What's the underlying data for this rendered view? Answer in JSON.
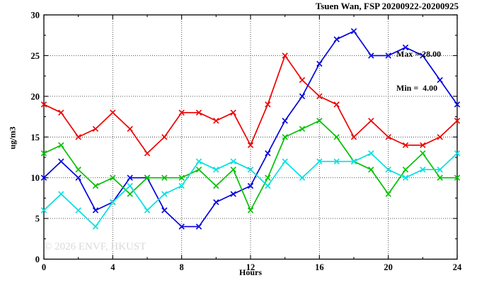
{
  "title": "Tsuen Wan, FSP 20200922-20200925",
  "annotation": {
    "max_label": "Max = 28.00",
    "min_label": "Min =  4.00"
  },
  "watermark": "© 2026 ENVF, HKUST",
  "chart_data": {
    "type": "line",
    "title": "Tsuen Wan, FSP 20200922-20200925",
    "xlabel": "Hours",
    "ylabel": "ug/m3",
    "xlim": [
      0,
      24
    ],
    "ylim": [
      0,
      30
    ],
    "xticks": [
      0,
      4,
      8,
      12,
      16,
      20,
      24
    ],
    "yticks": [
      0,
      5,
      10,
      15,
      20,
      25,
      30
    ],
    "x_minor_ticks": [
      2,
      6,
      10,
      14,
      18,
      22
    ],
    "y_minor_ticks": [
      2.5,
      7.5,
      12.5,
      17.5,
      22.5,
      27.5
    ],
    "grid": true,
    "legend": "none",
    "stat_max": 28.0,
    "stat_min": 4.0,
    "x": [
      0,
      1,
      2,
      3,
      4,
      5,
      6,
      7,
      8,
      9,
      10,
      11,
      12,
      13,
      14,
      15,
      16,
      17,
      18,
      19,
      20,
      21,
      22,
      23,
      24
    ],
    "series": [
      {
        "name": "red",
        "color": "#ee0000",
        "values": [
          19,
          18,
          15,
          16,
          18,
          16,
          13,
          15,
          18,
          18,
          17,
          18,
          14,
          19,
          25,
          22,
          20,
          19,
          15,
          17,
          15,
          14,
          14,
          15,
          17
        ]
      },
      {
        "name": "blue",
        "color": "#0000dd",
        "values": [
          10,
          12,
          10,
          6,
          7,
          10,
          10,
          6,
          4,
          4,
          7,
          8,
          9,
          13,
          17,
          20,
          24,
          27,
          28,
          25,
          25,
          26,
          25,
          22,
          19
        ]
      },
      {
        "name": "green",
        "color": "#00c000",
        "values": [
          13,
          14,
          11,
          9,
          10,
          8,
          10,
          10,
          10,
          11,
          9,
          11,
          6,
          10,
          15,
          16,
          17,
          15,
          12,
          11,
          8,
          11,
          13,
          10,
          10
        ]
      },
      {
        "name": "cyan",
        "color": "#00e0e0",
        "values": [
          6,
          8,
          6,
          4,
          7,
          9,
          6,
          8,
          9,
          12,
          11,
          12,
          11,
          9,
          12,
          10,
          12,
          12,
          12,
          13,
          11,
          10,
          11,
          11,
          13
        ]
      }
    ]
  }
}
